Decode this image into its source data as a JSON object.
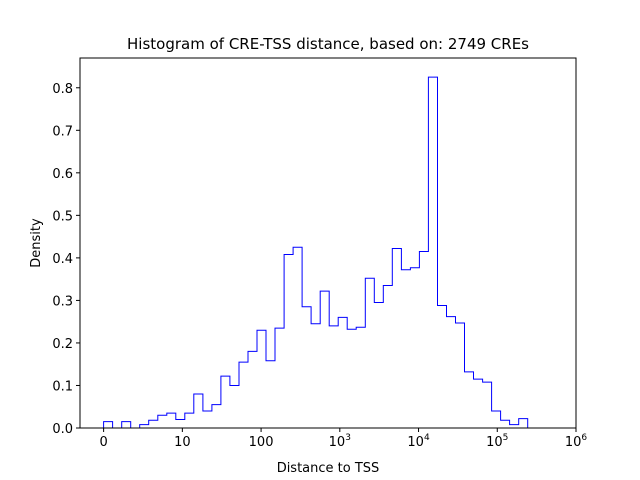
{
  "chart_data": {
    "type": "histogram-step",
    "title": "Histogram of CRE-TSS distance, based on: 2749 CREs",
    "xlabel": "Distance to TSS",
    "ylabel": "Density",
    "xscale": "log10(1+x)",
    "xlim_log": [
      -0.3,
      6.0
    ],
    "ylim": [
      0,
      0.87
    ],
    "grid": false,
    "line_color": "#0000ff",
    "x_ticks": [
      {
        "value": 0,
        "label": "0"
      },
      {
        "value": 1,
        "label": "10"
      },
      {
        "value": 2,
        "label": "100"
      },
      {
        "value": 3,
        "base": "10",
        "exp": "3"
      },
      {
        "value": 4,
        "base": "10",
        "exp": "4"
      },
      {
        "value": 5,
        "base": "10",
        "exp": "5"
      },
      {
        "value": 6,
        "base": "10",
        "exp": "6"
      }
    ],
    "y_ticks": [
      0.0,
      0.1,
      0.2,
      0.3,
      0.4,
      0.5,
      0.6,
      0.7,
      0.8
    ],
    "y_tick_labels": [
      "0.0",
      "0.1",
      "0.2",
      "0.3",
      "0.4",
      "0.5",
      "0.6",
      "0.7",
      "0.8"
    ],
    "bin_start_log": 0.0,
    "bin_width_log": 0.1146,
    "values": [
      0.015,
      0.0,
      0.015,
      0.0,
      0.008,
      0.018,
      0.03,
      0.035,
      0.02,
      0.035,
      0.08,
      0.04,
      0.055,
      0.122,
      0.1,
      0.155,
      0.18,
      0.23,
      0.158,
      0.235,
      0.408,
      0.425,
      0.285,
      0.245,
      0.322,
      0.24,
      0.26,
      0.232,
      0.237,
      0.352,
      0.295,
      0.335,
      0.422,
      0.372,
      0.377,
      0.415,
      0.825,
      0.288,
      0.262,
      0.247,
      0.132,
      0.115,
      0.108,
      0.04,
      0.018,
      0.008,
      0.022,
      0.0,
      0.0,
      0.0
    ]
  }
}
